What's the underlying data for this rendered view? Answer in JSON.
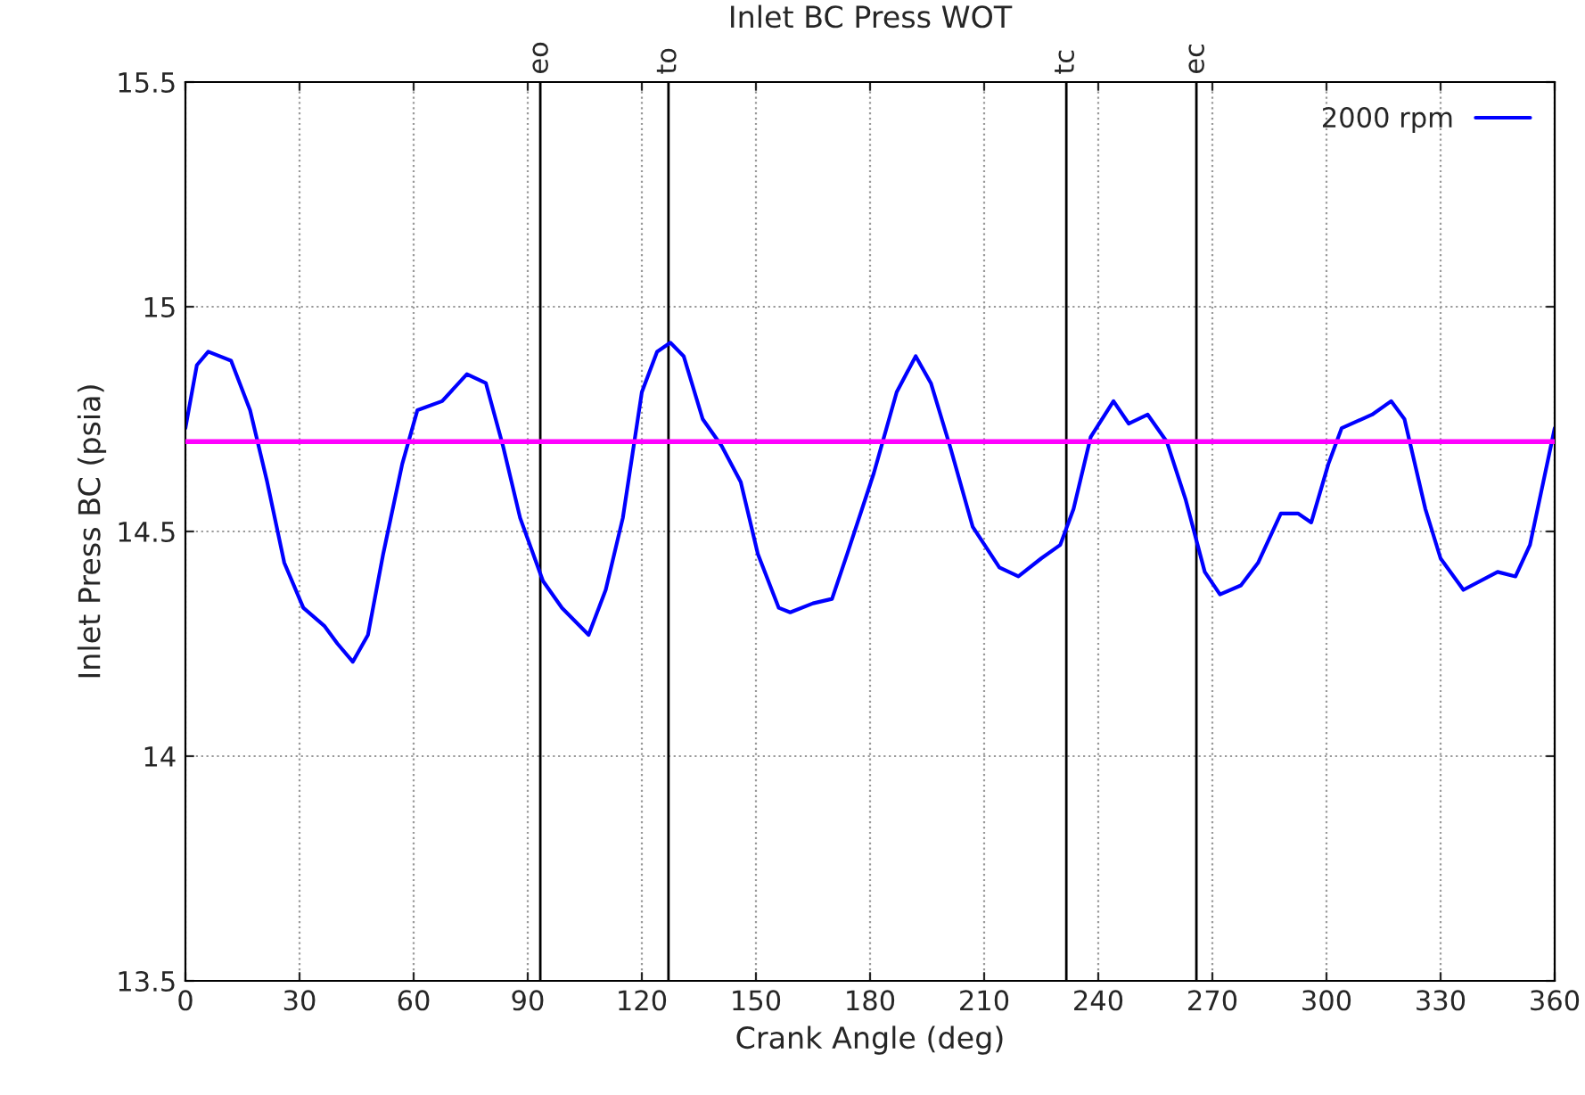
{
  "chart_data": {
    "type": "line",
    "title": "Inlet BC Press WOT",
    "xlabel": "Crank Angle (deg)",
    "ylabel": "Inlet Press BC (psia)",
    "x": [
      0,
      3,
      6,
      12,
      17,
      21.5,
      26,
      31,
      36.5,
      40,
      44,
      48,
      52,
      57,
      61,
      67.5,
      74,
      79,
      83.5,
      88,
      94,
      99,
      106,
      110.5,
      115,
      120,
      124,
      127.5,
      131,
      136,
      141,
      146,
      150.5,
      156,
      159,
      165,
      170,
      174,
      181,
      187,
      192,
      196,
      201,
      207,
      214,
      219,
      225,
      230,
      233.5,
      238,
      244,
      248,
      253,
      258,
      263,
      268,
      272,
      277.5,
      282,
      288,
      292.5,
      296,
      300.5,
      304,
      312,
      317,
      320.5,
      326,
      330,
      336,
      345,
      349.7,
      353.5,
      357,
      360
    ],
    "series": [
      {
        "name": "2000 rpm",
        "color": "#0000ff",
        "values": [
          14.73,
          14.87,
          14.9,
          14.88,
          14.77,
          14.61,
          14.43,
          14.33,
          14.29,
          14.25,
          14.21,
          14.27,
          14.45,
          14.65,
          14.77,
          14.79,
          14.85,
          14.83,
          14.69,
          14.53,
          14.39,
          14.33,
          14.27,
          14.37,
          14.53,
          14.81,
          14.9,
          14.92,
          14.89,
          14.75,
          14.69,
          14.61,
          14.45,
          14.33,
          14.32,
          14.34,
          14.35,
          14.45,
          14.63,
          14.81,
          14.89,
          14.83,
          14.69,
          14.51,
          14.42,
          14.4,
          14.44,
          14.47,
          14.55,
          14.71,
          14.79,
          14.74,
          14.76,
          14.7,
          14.57,
          14.41,
          14.36,
          14.38,
          14.43,
          14.54,
          14.54,
          14.52,
          14.65,
          14.73,
          14.76,
          14.79,
          14.75,
          14.55,
          14.44,
          14.37,
          14.41,
          14.4,
          14.47,
          14.61,
          14.73
        ]
      }
    ],
    "xlim": [
      0,
      360
    ],
    "xticks": [
      0,
      30,
      60,
      90,
      120,
      150,
      180,
      210,
      240,
      270,
      300,
      330,
      360
    ],
    "ylim": [
      13.5,
      15.5
    ],
    "yticks": [
      13.5,
      14,
      14.5,
      15,
      15.5
    ],
    "ref_lines": [
      {
        "axis": "x",
        "value": 93.3,
        "label": "eo",
        "color": "#000000"
      },
      {
        "axis": "x",
        "value": 127,
        "label": "to",
        "color": "#000000"
      },
      {
        "axis": "x",
        "value": 231.6,
        "label": "tc",
        "color": "#000000"
      },
      {
        "axis": "x",
        "value": 265.8,
        "label": "ec",
        "color": "#000000"
      },
      {
        "axis": "y",
        "value": 14.7,
        "color": "#ff00ff"
      }
    ],
    "grid": true,
    "legend": "top right",
    "line_style": "solid"
  }
}
